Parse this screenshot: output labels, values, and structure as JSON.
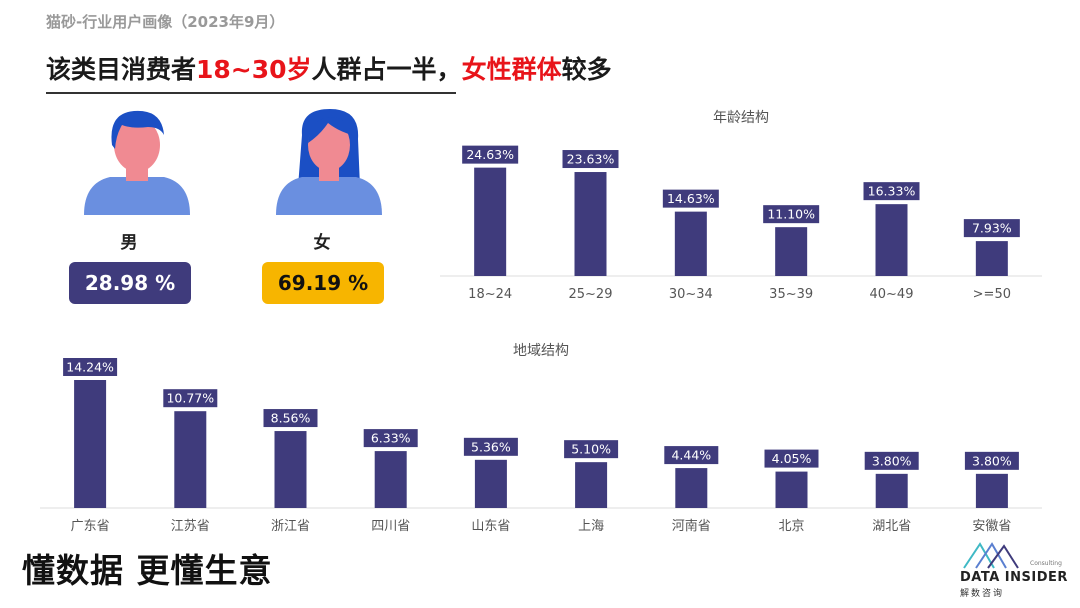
{
  "header": {
    "subtitle": "猫砂-行业用户画像（2023年9月）",
    "headline_parts": [
      "该类目消费者",
      "18~30岁",
      "人群占一半，",
      "女性群体",
      "较多"
    ]
  },
  "gender": {
    "male": {
      "label": "男",
      "value": "28.98 %",
      "icon": "male-avatar-icon"
    },
    "female": {
      "label": "女",
      "value": "69.19 %",
      "icon": "female-avatar-icon"
    }
  },
  "colors": {
    "bar": "#3f3b7c",
    "highlight": "#e8141a",
    "female_badge": "#f7b500",
    "skin": "#f08a92",
    "hair": "#1b4fc4",
    "shirt": "#6a8fe0"
  },
  "chart_data": [
    {
      "type": "bar",
      "title": "年龄结构",
      "categories": [
        "18~24",
        "25~29",
        "30~34",
        "35~39",
        "40~49",
        ">=50"
      ],
      "values": [
        24.63,
        23.63,
        14.63,
        11.1,
        16.33,
        7.93
      ],
      "value_labels": [
        "24.63%",
        "23.63%",
        "14.63%",
        "11.10%",
        "16.33%",
        "7.93%"
      ],
      "ylim": [
        0,
        25
      ],
      "grid": false,
      "legend": "none"
    },
    {
      "type": "bar",
      "title": "地域结构",
      "categories": [
        "广东省",
        "江苏省",
        "浙江省",
        "四川省",
        "山东省",
        "上海",
        "河南省",
        "北京",
        "湖北省",
        "安徽省"
      ],
      "values": [
        14.24,
        10.77,
        8.56,
        6.33,
        5.36,
        5.1,
        4.44,
        4.05,
        3.8,
        3.8
      ],
      "value_labels": [
        "14.24%",
        "10.77%",
        "8.56%",
        "6.33%",
        "5.36%",
        "5.10%",
        "4.44%",
        "4.05%",
        "3.80%",
        "3.80%"
      ],
      "ylim": [
        0,
        14.24
      ],
      "grid": false,
      "legend": "none"
    }
  ],
  "footer": {
    "slogan": "懂数据 更懂生意",
    "logo_text": "DATA INSIDER",
    "logo_sub": "解数咨询",
    "logo_tiny": "Consulting"
  }
}
